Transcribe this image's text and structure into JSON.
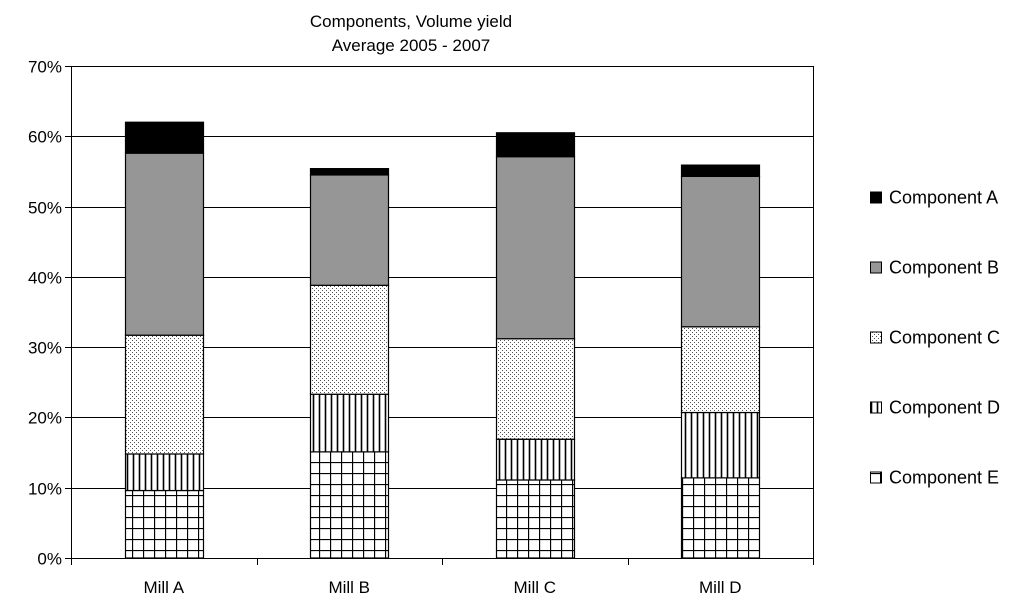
{
  "chart_data": {
    "type": "bar",
    "stacked": true,
    "title": "Components, Volume yield",
    "subtitle": "Average 2005 - 2007",
    "xlabel": "",
    "ylabel": "",
    "categories": [
      "Mill A",
      "Mill B",
      "Mill C",
      "Mill D"
    ],
    "ylim": [
      0,
      70
    ],
    "yticks": [
      0,
      10,
      20,
      30,
      40,
      50,
      60,
      70
    ],
    "ytick_labels": [
      "0%",
      "10%",
      "20%",
      "30%",
      "40%",
      "50%",
      "60%",
      "70%"
    ],
    "grid": true,
    "legend_position": "right",
    "series": [
      {
        "name": "Component E",
        "values": [
          9.6,
          15.1,
          11.1,
          11.4
        ],
        "pattern": "grid",
        "color": "#ffffff"
      },
      {
        "name": "Component D",
        "values": [
          5.2,
          8.2,
          5.8,
          9.3
        ],
        "pattern": "vertical-lines",
        "color": "#ffffff"
      },
      {
        "name": "Component C",
        "values": [
          16.9,
          15.5,
          14.3,
          12.2
        ],
        "pattern": "dots",
        "color": "#ffffff"
      },
      {
        "name": "Component B",
        "values": [
          25.9,
          15.7,
          25.9,
          21.4
        ],
        "pattern": "solid",
        "color": "#969696"
      },
      {
        "name": "Component A",
        "values": [
          4.4,
          0.9,
          3.4,
          1.6
        ],
        "pattern": "solid",
        "color": "#000000"
      }
    ],
    "legend_order": [
      "Component A",
      "Component B",
      "Component C",
      "Component D",
      "Component E"
    ]
  }
}
